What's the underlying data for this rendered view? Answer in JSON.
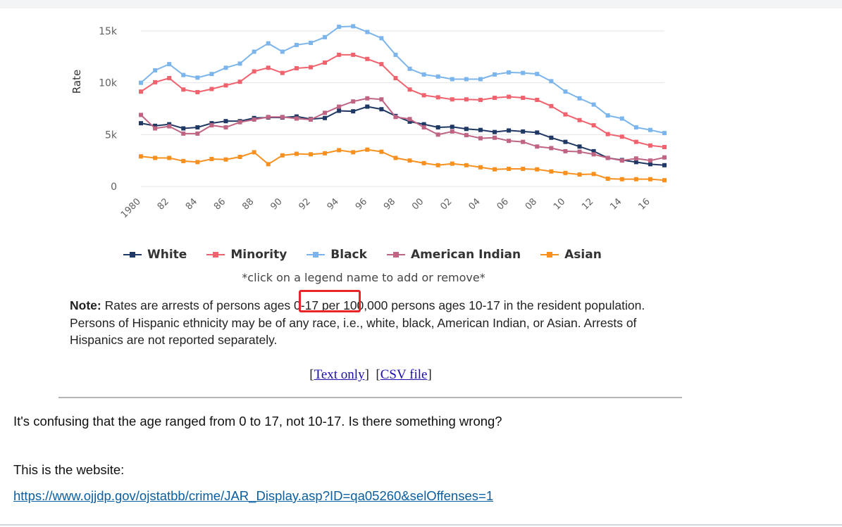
{
  "chart_data": {
    "type": "line",
    "ylabel": "Rate",
    "ylim": [
      0,
      15000
    ],
    "yticks": [
      0,
      5000,
      10000,
      15000
    ],
    "ytick_labels": [
      "0",
      "5k",
      "10k",
      "15k"
    ],
    "xlim": [
      1980,
      2017
    ],
    "xticks": [
      1980,
      1982,
      1984,
      1986,
      1988,
      1990,
      1992,
      1994,
      1996,
      1998,
      2000,
      2002,
      2004,
      2006,
      2008,
      2010,
      2012,
      2014,
      2016
    ],
    "xtick_labels": [
      "1980",
      "82",
      "84",
      "86",
      "88",
      "90",
      "92",
      "94",
      "96",
      "98",
      "00",
      "02",
      "04",
      "06",
      "08",
      "10",
      "12",
      "14",
      "16"
    ],
    "x": [
      1980,
      1981,
      1982,
      1983,
      1984,
      1985,
      1986,
      1987,
      1988,
      1989,
      1990,
      1991,
      1992,
      1993,
      1994,
      1995,
      1996,
      1997,
      1998,
      1999,
      2000,
      2001,
      2002,
      2003,
      2004,
      2005,
      2006,
      2007,
      2008,
      2009,
      2010,
      2011,
      2012,
      2013,
      2014,
      2015,
      2016,
      2017
    ],
    "grid": true,
    "legend_position": "bottom",
    "series": [
      {
        "name": "White",
        "color": "#1f3864",
        "values": [
          6100,
          5850,
          6000,
          5600,
          5700,
          6100,
          6300,
          6300,
          6600,
          6650,
          6650,
          6750,
          6500,
          6600,
          7300,
          7250,
          7700,
          7450,
          6800,
          6250,
          6000,
          5700,
          5750,
          5550,
          5450,
          5250,
          5400,
          5300,
          5200,
          4700,
          4300,
          3850,
          3400,
          2750,
          2550,
          2350,
          2150,
          2050
        ]
      },
      {
        "name": "Minority",
        "color": "#f0626e",
        "values": [
          9150,
          10050,
          10450,
          9350,
          9100,
          9400,
          9750,
          10100,
          11100,
          11450,
          10950,
          11400,
          11500,
          11950,
          12700,
          12700,
          12300,
          11800,
          10450,
          9350,
          8800,
          8600,
          8400,
          8400,
          8350,
          8550,
          8650,
          8550,
          8350,
          7750,
          6950,
          6400,
          5900,
          5050,
          4800,
          4300,
          3950,
          3800
        ]
      },
      {
        "name": "Black",
        "color": "#7cb5ec",
        "values": [
          10000,
          11200,
          11800,
          10750,
          10500,
          10850,
          11450,
          11850,
          13000,
          13800,
          13000,
          13650,
          13850,
          14400,
          15400,
          15450,
          14900,
          14300,
          12700,
          11350,
          10800,
          10600,
          10350,
          10350,
          10350,
          10800,
          11000,
          10950,
          10850,
          10150,
          9150,
          8500,
          7900,
          6850,
          6550,
          5700,
          5450,
          5150
        ]
      },
      {
        "name": "American Indian",
        "color": "#c06484",
        "values": [
          6900,
          5600,
          5800,
          5100,
          5100,
          5900,
          5700,
          6200,
          6450,
          6700,
          6700,
          6550,
          6450,
          7100,
          7700,
          8200,
          8500,
          8400,
          6700,
          6500,
          5700,
          5000,
          5300,
          4950,
          4650,
          4700,
          4400,
          4300,
          3850,
          3700,
          3400,
          3350,
          3100,
          2750,
          2500,
          2700,
          2500,
          2800
        ]
      },
      {
        "name": "Asian",
        "color": "#f7901e",
        "values": [
          2900,
          2750,
          2750,
          2450,
          2350,
          2650,
          2600,
          2850,
          3300,
          2150,
          3000,
          3150,
          3100,
          3200,
          3500,
          3300,
          3550,
          3350,
          2750,
          2500,
          2250,
          2050,
          2200,
          2050,
          1850,
          1650,
          1700,
          1700,
          1650,
          1450,
          1300,
          1150,
          1200,
          750,
          700,
          700,
          700,
          600
        ]
      }
    ]
  },
  "legend_hint": "*click on a legend name to add or remove*",
  "note": {
    "label": "Note:",
    "text": " Rates are arrests of persons ages 0-17 per 100,000 persons ages 10-17 in the resident population. Persons of Hispanic ethnicity may be of any race, i.e., white, black, American Indian, or Asian. Arrests of Hispanics are not reported separately."
  },
  "links": {
    "text_only": "Text only",
    "csv_file": "CSV file"
  },
  "annotation_color": "#e8262a",
  "question": "It's confusing that the age ranged from 0 to 17, not 10-17. Is there something wrong?",
  "website_label": "This is the website:",
  "website_url": "https://www.ojjdp.gov/ojstatbb/crime/JAR_Display.asp?ID=qa05260&selOffenses=1"
}
